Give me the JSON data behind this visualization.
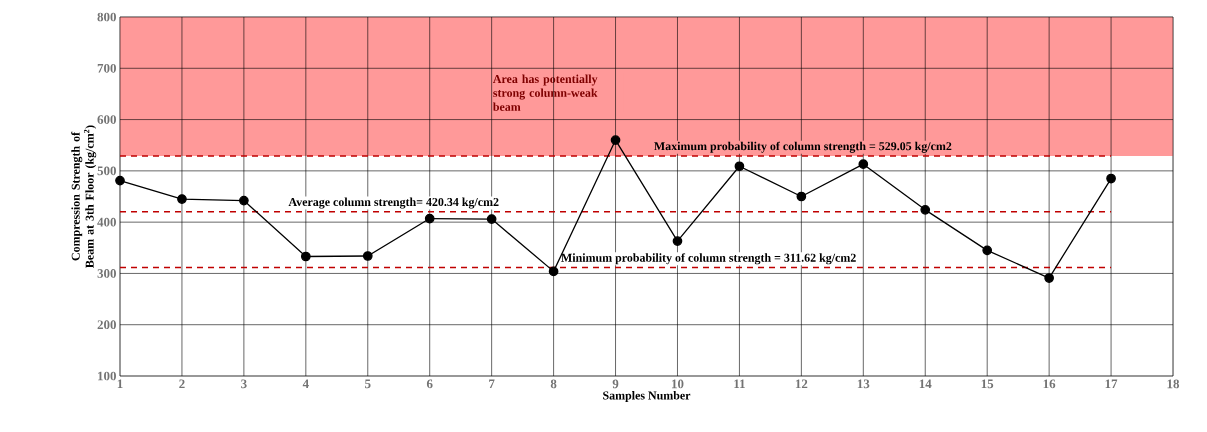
{
  "chart_data": {
    "type": "line",
    "xlabel": "Samples Number",
    "ylabel": "Compression Strength of Beam at 3th Floor (kg/cm$^{2}$)",
    "x": [
      1,
      2,
      3,
      4,
      5,
      6,
      7,
      8,
      9,
      10,
      11,
      12,
      13,
      14,
      15,
      16,
      17
    ],
    "series": [
      {
        "color": "#000000",
        "values": [
          481,
          445,
          442,
          333,
          334,
          407,
          406,
          304,
          560,
          363,
          509,
          450,
          513,
          424,
          345,
          291,
          485
        ]
      }
    ],
    "xlim": [
      1,
      18
    ],
    "xticks": [
      1,
      2,
      3,
      4,
      5,
      6,
      7,
      8,
      9,
      10,
      11,
      12,
      13,
      14,
      15,
      16,
      17,
      18
    ],
    "ylim": [
      100,
      800
    ],
    "yticks": [
      100,
      200,
      300,
      400,
      500,
      600,
      700,
      800
    ],
    "grid": true,
    "marker": "circle",
    "line_style": "solid",
    "ref_lines": [
      {
        "axis": "y",
        "value": 529.05,
        "label": "Maximum probability of column strength = 529.05  kg/cm2",
        "color": "#c00000",
        "line_style": "dashed"
      },
      {
        "axis": "y",
        "value": 420.34,
        "label": "Average column strength= 420.34 kg/cm2",
        "color": "#c00000",
        "line_style": "dashed"
      },
      {
        "axis": "y",
        "value": 311.62,
        "label": "Minimum probability of column strength = 311.62 kg/cm2",
        "color": "#c00000",
        "line_style": "dashed"
      }
    ],
    "bands": [
      {
        "axis": "y",
        "from": 529.05,
        "to": 800,
        "label": "Area has potentially strong column-weak beam",
        "color": "#ff9999"
      }
    ]
  }
}
